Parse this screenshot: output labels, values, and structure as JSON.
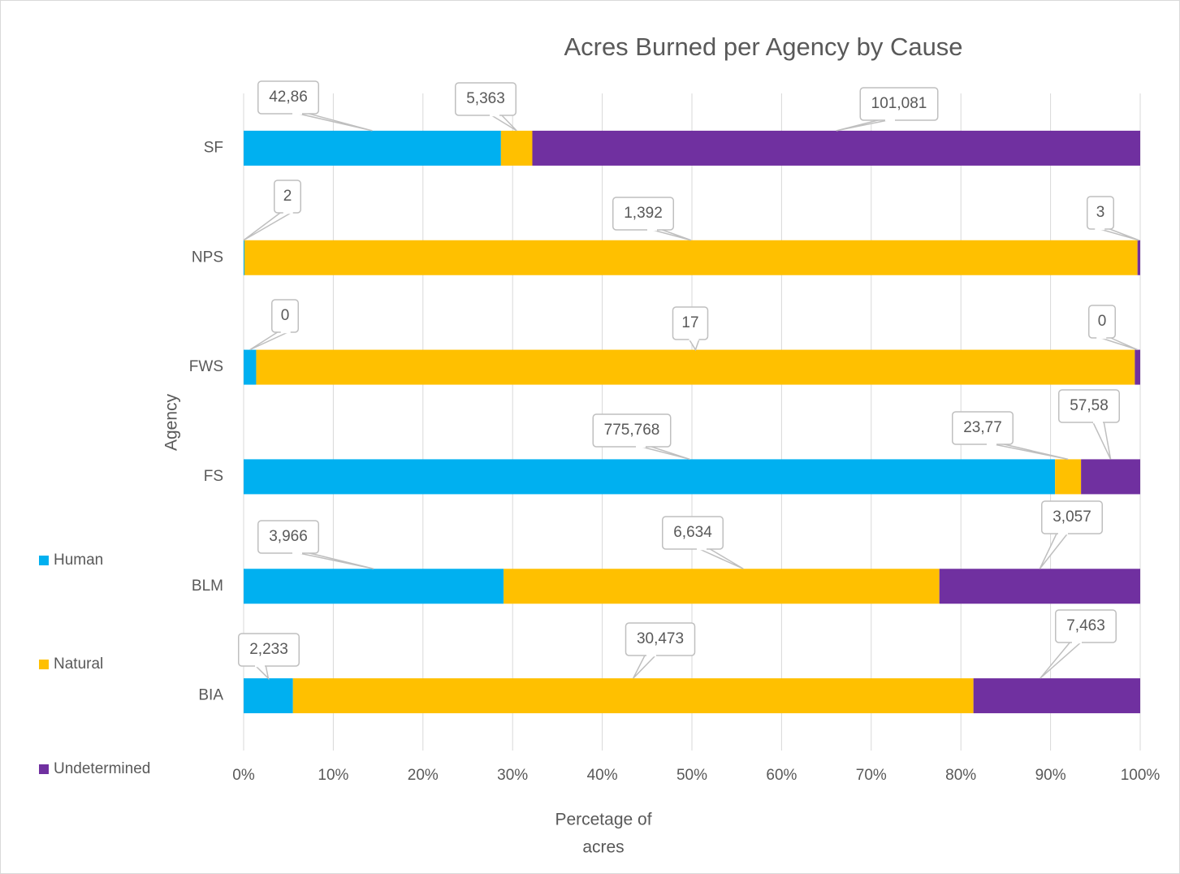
{
  "chart_data": {
    "type": "bar",
    "orientation": "horizontal",
    "stacked": true,
    "title": "Acres Burned per Agency by Cause",
    "y_label": "Agency",
    "x_label_lines": [
      "Percetage of",
      "acres"
    ],
    "categories": [
      "BIA",
      "BLM",
      "FS",
      "FWS",
      "NPS",
      "SF"
    ],
    "series": [
      {
        "name": "Human",
        "color": "#00b0f0",
        "values": [
          5.5,
          29.0,
          90.5,
          1.4,
          0.1,
          28.7
        ],
        "data_labels": [
          "2,233",
          "3,966",
          "775,768",
          "0",
          "2",
          "42,86"
        ]
      },
      {
        "name": "Natural",
        "color": "#ffc000",
        "values": [
          75.9,
          48.6,
          2.9,
          98.0,
          99.6,
          3.5
        ],
        "data_labels": [
          "30,473",
          "6,634",
          "23,77",
          "17",
          "1,392",
          "5,363"
        ]
      },
      {
        "name": "Undetermined",
        "color": "#7030a0",
        "values": [
          18.6,
          22.4,
          6.6,
          0.6,
          0.3,
          67.8
        ],
        "data_labels": [
          "7,463",
          "3,057",
          "57,58",
          "0",
          "3",
          "101,081"
        ]
      }
    ],
    "xlim": [
      0,
      100
    ],
    "xticks": [
      {
        "value": 0,
        "label": "0%"
      },
      {
        "value": 10,
        "label": "10%"
      },
      {
        "value": 20,
        "label": "20%"
      },
      {
        "value": 30,
        "label": "30%"
      },
      {
        "value": 40,
        "label": "40%"
      },
      {
        "value": 50,
        "label": "50%"
      },
      {
        "value": 60,
        "label": "60%"
      },
      {
        "value": 70,
        "label": "70%"
      },
      {
        "value": 80,
        "label": "80%"
      },
      {
        "value": 90,
        "label": "90%"
      },
      {
        "value": 100,
        "label": "100%"
      }
    ],
    "grid": true,
    "legend": "left"
  }
}
